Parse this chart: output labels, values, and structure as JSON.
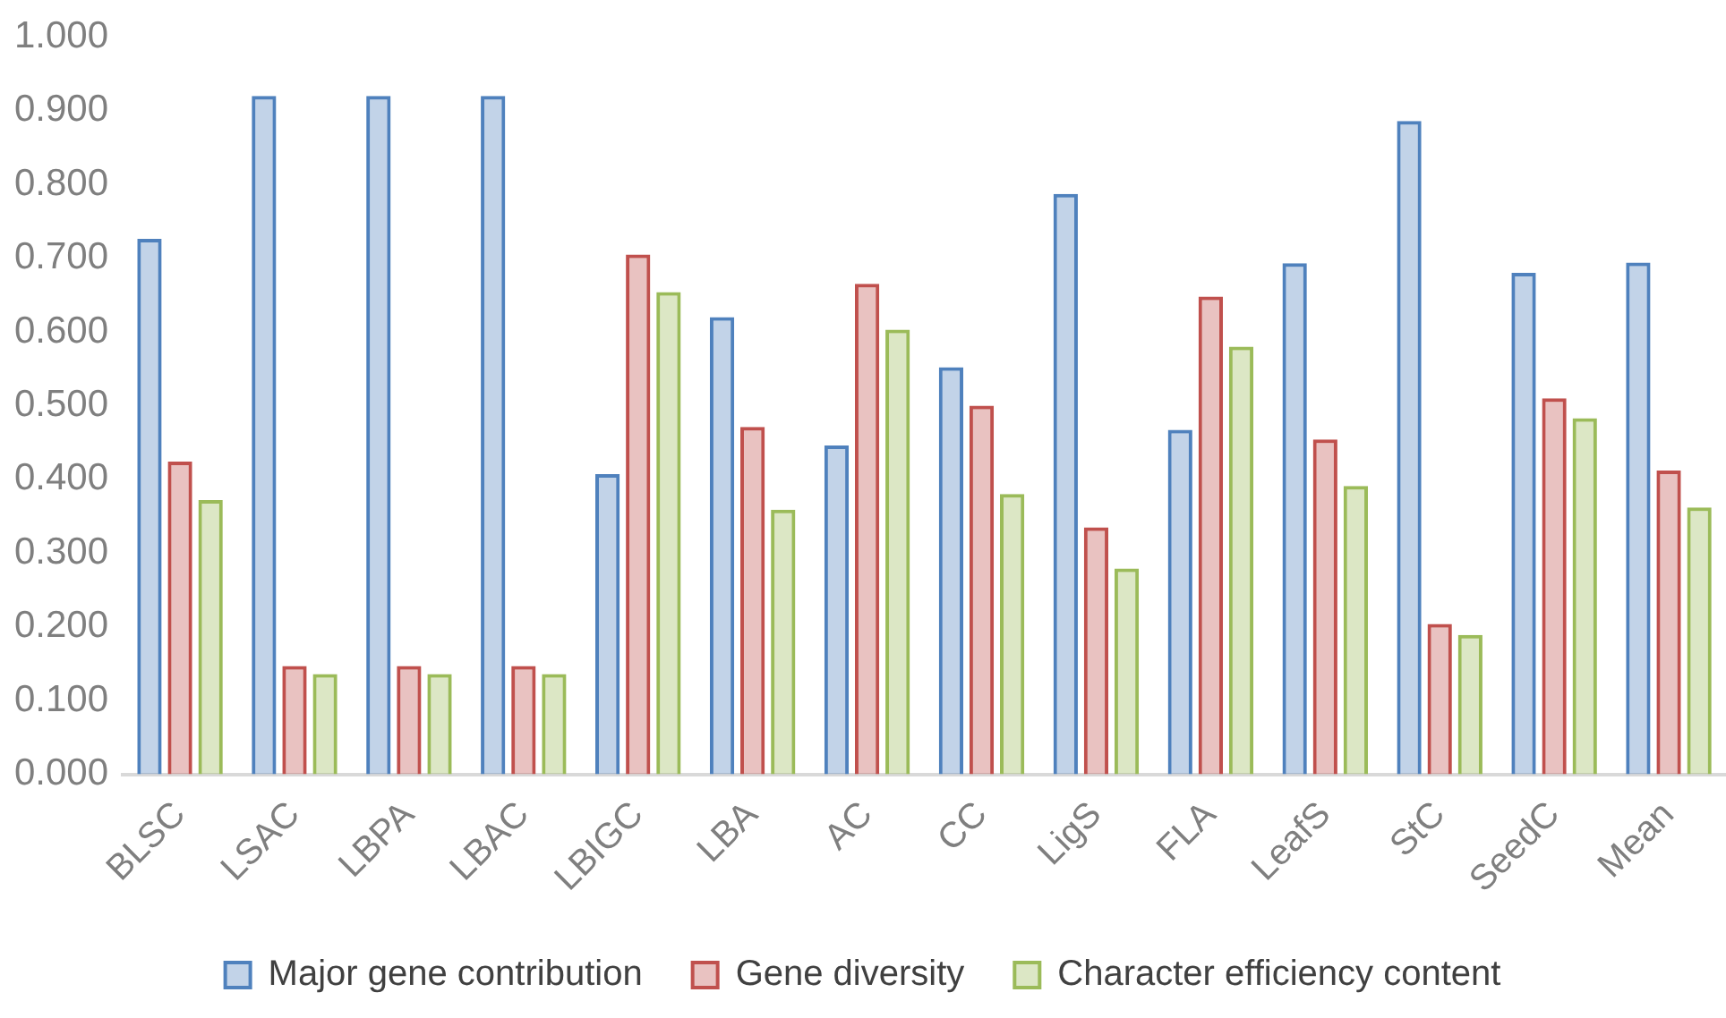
{
  "chart_data": {
    "type": "bar",
    "categories": [
      "BLSC",
      "LSAC",
      "LBPA",
      "LBAC",
      "LBIGC",
      "LBA",
      "AC",
      "CC",
      "LigS",
      "FLA",
      "LeafS",
      "StC",
      "SeedC",
      "Mean"
    ],
    "series": [
      {
        "name": "Major gene contribution",
        "color": "#4f81bd",
        "values": [
          0.726,
          0.92,
          0.92,
          0.92,
          0.407,
          0.62,
          0.446,
          0.552,
          0.787,
          0.467,
          0.693,
          0.886,
          0.68,
          0.694
        ]
      },
      {
        "name": "Gene diversity",
        "color": "#c0504d",
        "values": [
          0.424,
          0.147,
          0.147,
          0.147,
          0.705,
          0.471,
          0.665,
          0.5,
          0.335,
          0.648,
          0.454,
          0.204,
          0.51,
          0.412
        ]
      },
      {
        "name": "Character efficiency content",
        "color": "#9bbb59",
        "values": [
          0.372,
          0.136,
          0.136,
          0.136,
          0.654,
          0.359,
          0.603,
          0.38,
          0.279,
          0.58,
          0.391,
          0.189,
          0.483,
          0.362
        ]
      }
    ],
    "ylim": [
      0,
      1
    ],
    "yticks": [
      {
        "value": 0,
        "label": "0.000"
      },
      {
        "value": 0.1,
        "label": "0.100"
      },
      {
        "value": 0.2,
        "label": "0.200"
      },
      {
        "value": 0.3,
        "label": "0.300"
      },
      {
        "value": 0.4,
        "label": "0.400"
      },
      {
        "value": 0.5,
        "label": "0.500"
      },
      {
        "value": 0.6,
        "label": "0.600"
      },
      {
        "value": 0.7,
        "label": "0.700"
      },
      {
        "value": 0.8,
        "label": "0.800"
      },
      {
        "value": 0.9,
        "label": "0.900"
      },
      {
        "value": 1,
        "label": "1.000"
      }
    ],
    "grid": false,
    "legend": "bottom"
  }
}
